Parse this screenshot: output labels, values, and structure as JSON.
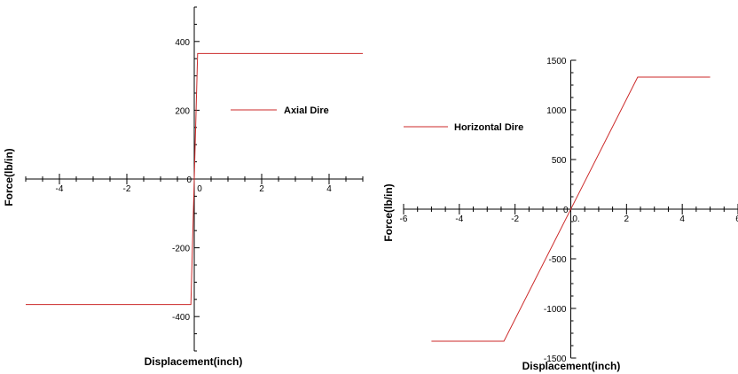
{
  "chart_data": [
    {
      "type": "line",
      "xlabel": "Displacement(inch)",
      "ylabel": "Force(lb/in)",
      "xlim": [
        -5,
        5
      ],
      "ylim": [
        -500,
        500
      ],
      "x_ticks": [
        -4,
        -2,
        0,
        2,
        4
      ],
      "y_ticks": [
        -400,
        -200,
        0,
        200,
        400
      ],
      "x_tick_labels": [
        "-4",
        "-2",
        "0",
        "2",
        "4"
      ],
      "y_tick_labels": [
        "-400",
        "-200",
        "0",
        "200",
        "400"
      ],
      "grid": false,
      "legend": "right",
      "series": [
        {
          "name": "Axial Dire",
          "color": "#cc2a2a",
          "x": [
            -5,
            -0.1,
            0.1,
            5
          ],
          "y": [
            -365,
            -365,
            365,
            365
          ]
        }
      ]
    },
    {
      "type": "line",
      "xlabel": "Displacement(inch)",
      "ylabel": "Force(lb/in)",
      "xlim": [
        -6,
        6
      ],
      "ylim": [
        -1500,
        1500
      ],
      "x_ticks": [
        -6,
        -4,
        -2,
        0,
        2,
        4,
        6
      ],
      "y_ticks": [
        -1500,
        -1000,
        -500,
        0,
        500,
        1000,
        1500
      ],
      "x_tick_labels": [
        "-6",
        "-4",
        "-2",
        "0.",
        "2",
        "4",
        "6"
      ],
      "y_tick_labels": [
        "-1500",
        "-1000",
        "-500",
        "0",
        "500",
        "1000",
        "1500"
      ],
      "grid": false,
      "legend": "top-left",
      "series": [
        {
          "name": "Horizontal Dire",
          "color": "#cc2a2a",
          "x": [
            -5,
            -2.4,
            2.4,
            5
          ],
          "y": [
            -1330,
            -1330,
            1330,
            1330
          ]
        }
      ]
    }
  ]
}
